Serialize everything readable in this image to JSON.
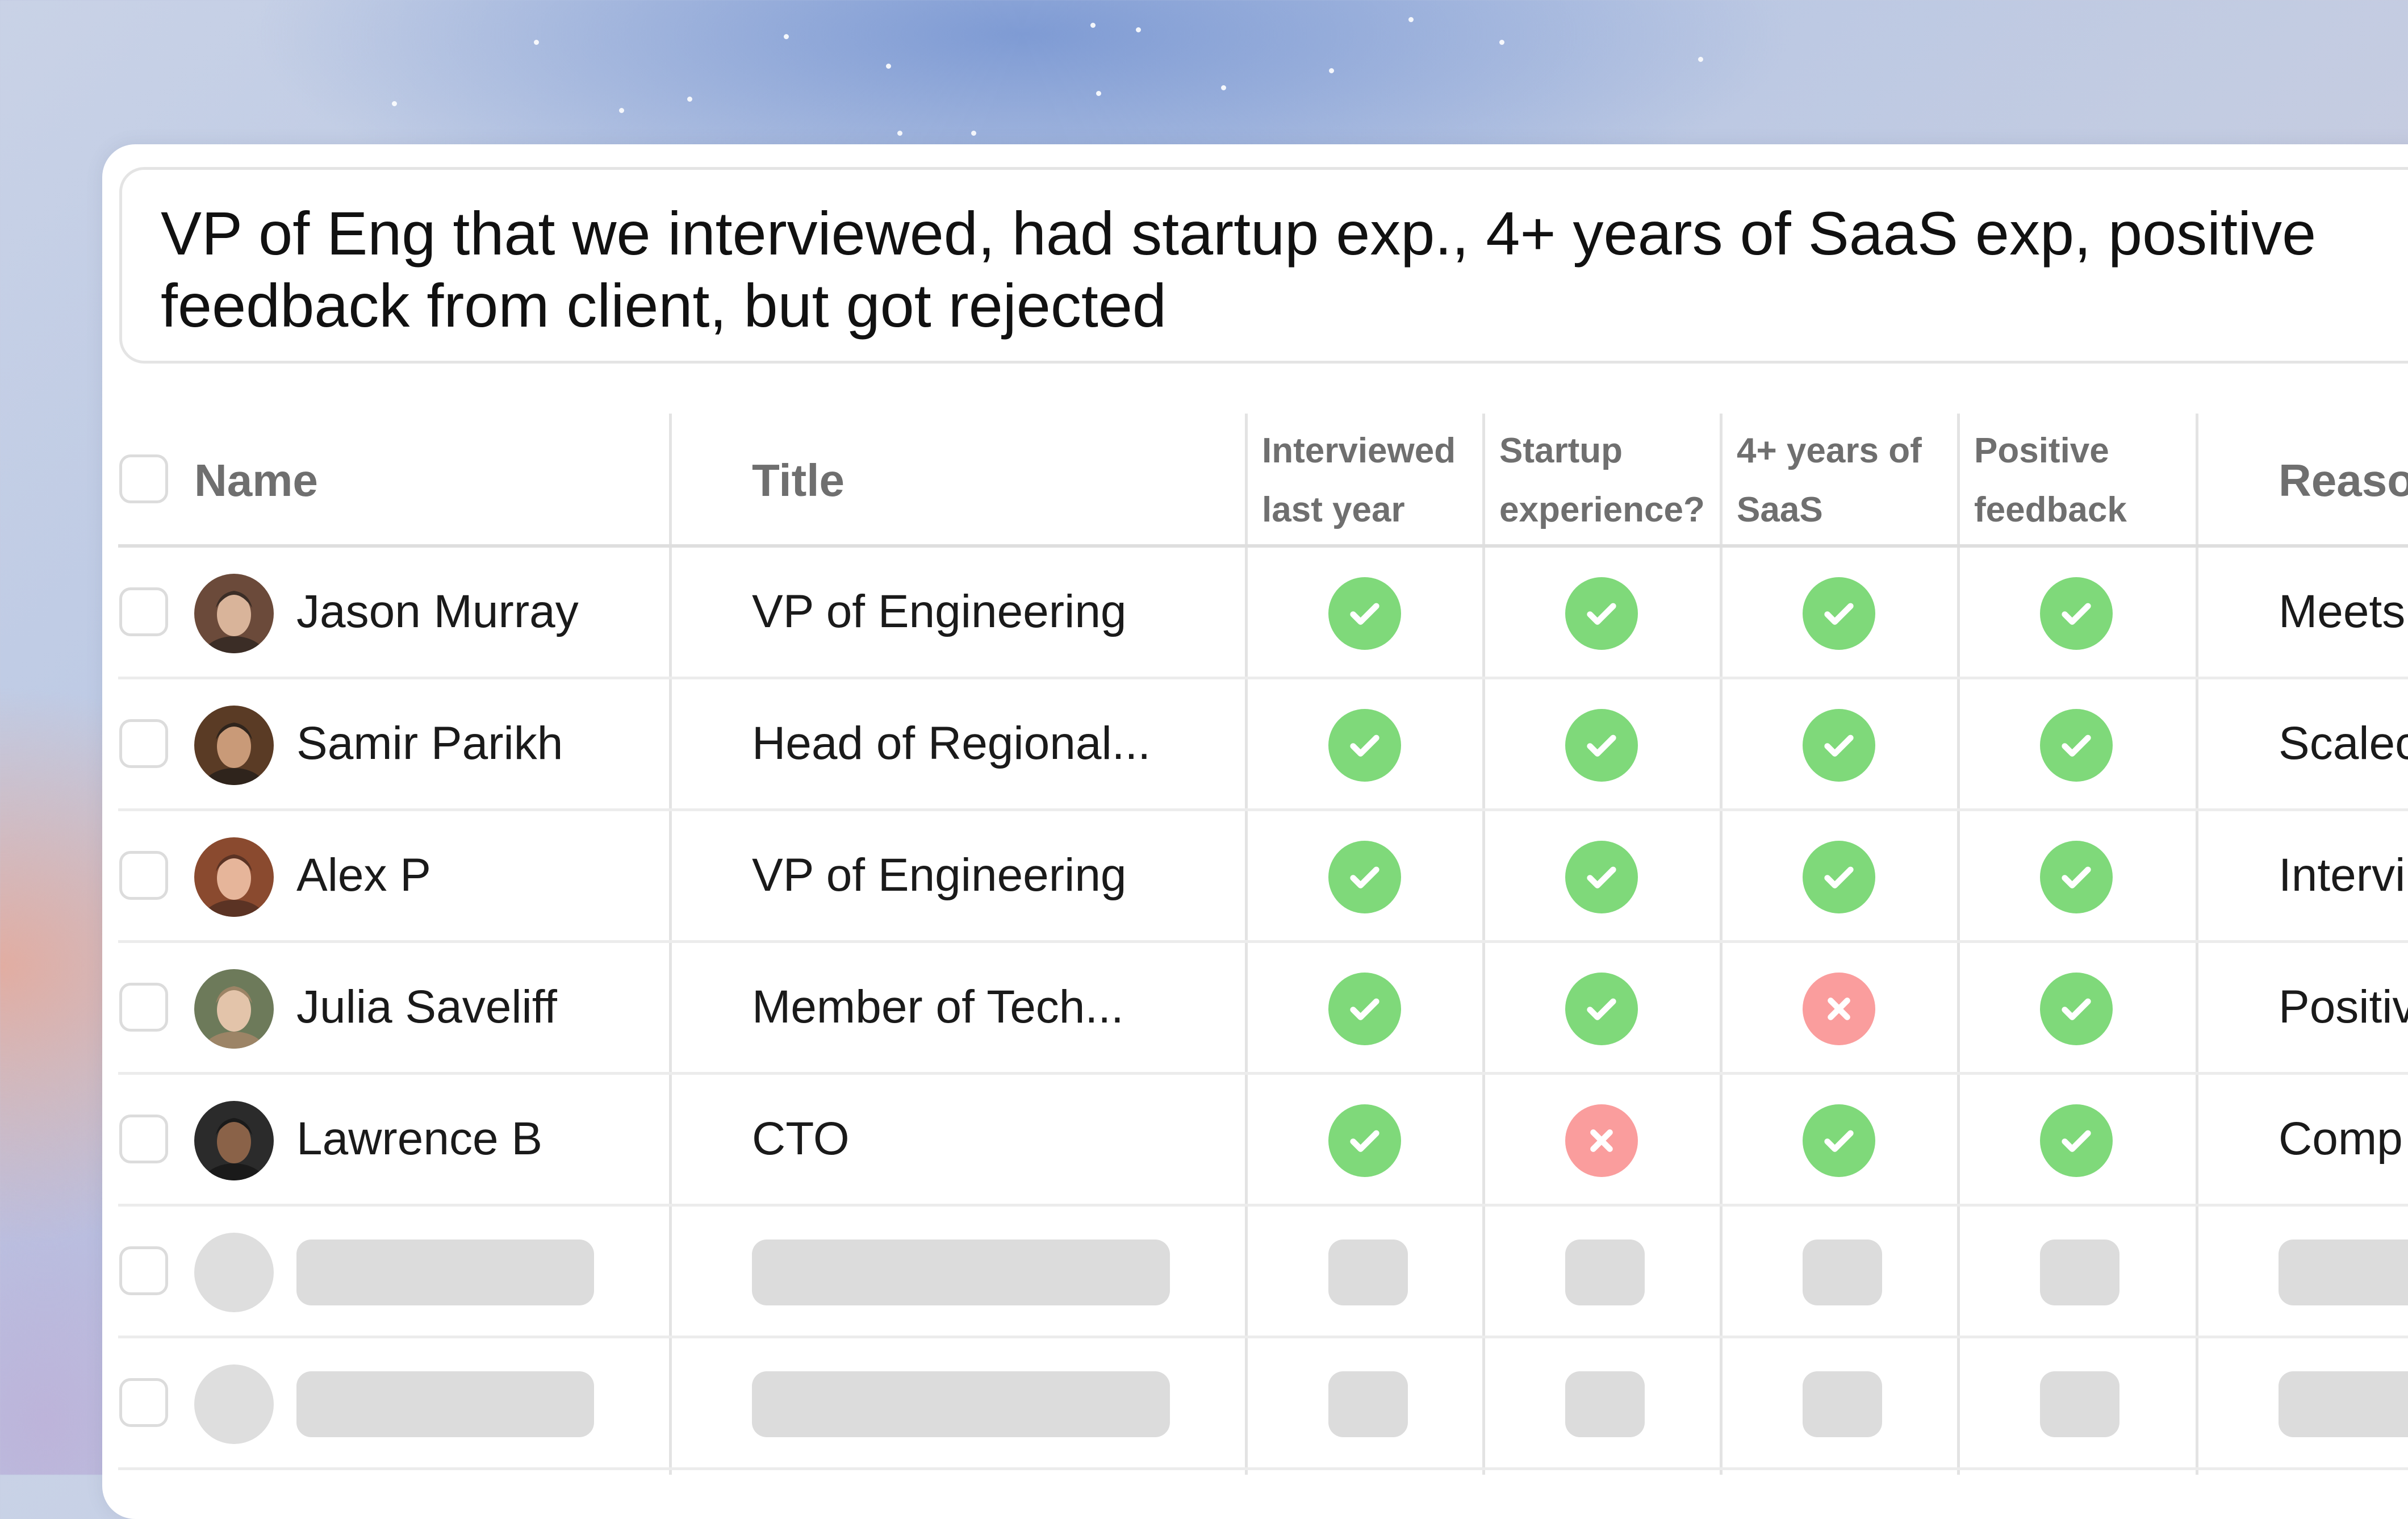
{
  "query": {
    "text": "VP of Eng that we interviewed, had startup exp., 4+ years of SaaS exp, positive\nfeedback from client, but got rejected"
  },
  "table": {
    "columns": {
      "name": "Name",
      "title": "Title",
      "interviewed": "Interviewed\nlast year",
      "startup": "Startup\nexperience?",
      "saas": "4+ years of\nSaaS",
      "feedback": "Positive\nfeedback",
      "reason": "Reaso"
    },
    "rows": [
      {
        "name": "Jason Murray",
        "title": "VP of Engineering",
        "interviewed": "yes",
        "startup": "yes",
        "saas": "yes",
        "feedback": "yes",
        "reason": "Meets"
      },
      {
        "name": "Samir Parikh",
        "title": "Head of Regional...",
        "interviewed": "yes",
        "startup": "yes",
        "saas": "yes",
        "feedback": "yes",
        "reason": "Scalec"
      },
      {
        "name": "Alex P",
        "title": "VP of Engineering",
        "interviewed": "yes",
        "startup": "yes",
        "saas": "yes",
        "feedback": "yes",
        "reason": "Intervi"
      },
      {
        "name": "Julia Saveliff",
        "title": "Member of Tech...",
        "interviewed": "yes",
        "startup": "yes",
        "saas": "no",
        "feedback": "yes",
        "reason": "Positiv"
      },
      {
        "name": "Lawrence B",
        "title": "CTO",
        "interviewed": "yes",
        "startup": "no",
        "saas": "yes",
        "feedback": "yes",
        "reason": "Comp"
      }
    ],
    "loading_rows": 2
  },
  "colors": {
    "yes": "#7fd97a",
    "no": "#fa9d9d",
    "skeleton": "#dcdcdc"
  }
}
